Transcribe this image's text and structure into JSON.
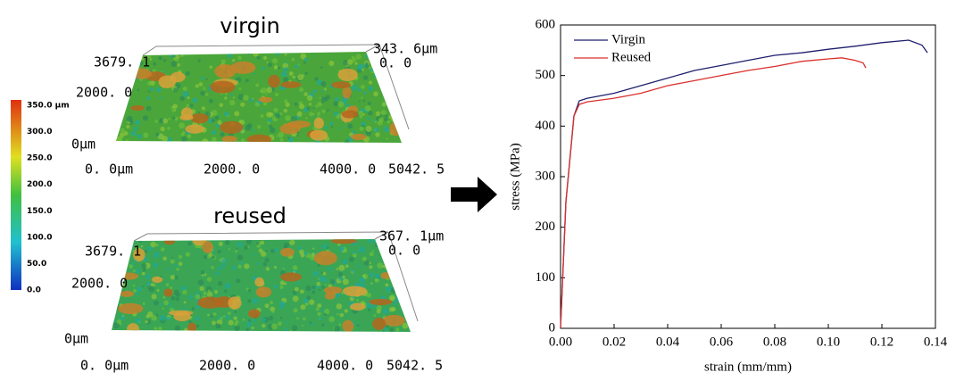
{
  "surfaces": [
    {
      "title": "virgin",
      "y_labels": [
        "3679. 1",
        "2000. 0",
        "0μm"
      ],
      "x_labels": [
        "0. 0μm",
        "2000. 0",
        "4000. 0",
        "5042. 5"
      ],
      "z_labels": [
        "343. 6μm",
        "0. 0"
      ]
    },
    {
      "title": "reused",
      "y_labels": [
        "3679. 1",
        "2000. 0",
        "0μm"
      ],
      "x_labels": [
        "0. 0μm",
        "2000. 0",
        "4000. 0",
        "5042. 5"
      ],
      "z_labels": [
        "367. 1μm",
        "0. 0"
      ]
    }
  ],
  "colorbar": {
    "labels": [
      "350.0 μm",
      "300.0",
      "250.0",
      "200.0",
      "150.0",
      "100.0",
      "50.0",
      "0.0"
    ]
  },
  "chart_data": {
    "type": "line",
    "xlabel": "strain (mm/mm)",
    "ylabel": "stress (MPa)",
    "xlim": [
      0,
      0.14
    ],
    "ylim": [
      0,
      600
    ],
    "xticks": [
      {
        "value": 0,
        "label": "0.00"
      },
      0.02,
      0.04,
      0.06,
      0.08,
      {
        "value": 0.1,
        "label": "0.10"
      },
      0.12,
      0.14
    ],
    "yticks": [
      0,
      100,
      200,
      300,
      400,
      500,
      600
    ],
    "legend": "upper-left",
    "series": [
      {
        "name": "Virgin",
        "color": "#1f1f6e",
        "x": [
          0,
          0.002,
          0.005,
          0.007,
          0.01,
          0.02,
          0.03,
          0.04,
          0.05,
          0.06,
          0.07,
          0.08,
          0.09,
          0.1,
          0.11,
          0.12,
          0.13,
          0.135,
          0.137
        ],
        "values": [
          0,
          250,
          420,
          450,
          455,
          465,
          480,
          495,
          510,
          520,
          530,
          540,
          545,
          552,
          558,
          565,
          570,
          560,
          545
        ]
      },
      {
        "name": "Reused",
        "color": "#d9302c",
        "x": [
          0,
          0.002,
          0.005,
          0.007,
          0.01,
          0.02,
          0.03,
          0.04,
          0.05,
          0.06,
          0.07,
          0.08,
          0.09,
          0.1,
          0.105,
          0.11,
          0.113,
          0.114
        ],
        "values": [
          0,
          250,
          420,
          443,
          448,
          455,
          465,
          480,
          490,
          500,
          510,
          518,
          528,
          533,
          535,
          530,
          525,
          515
        ]
      }
    ]
  }
}
